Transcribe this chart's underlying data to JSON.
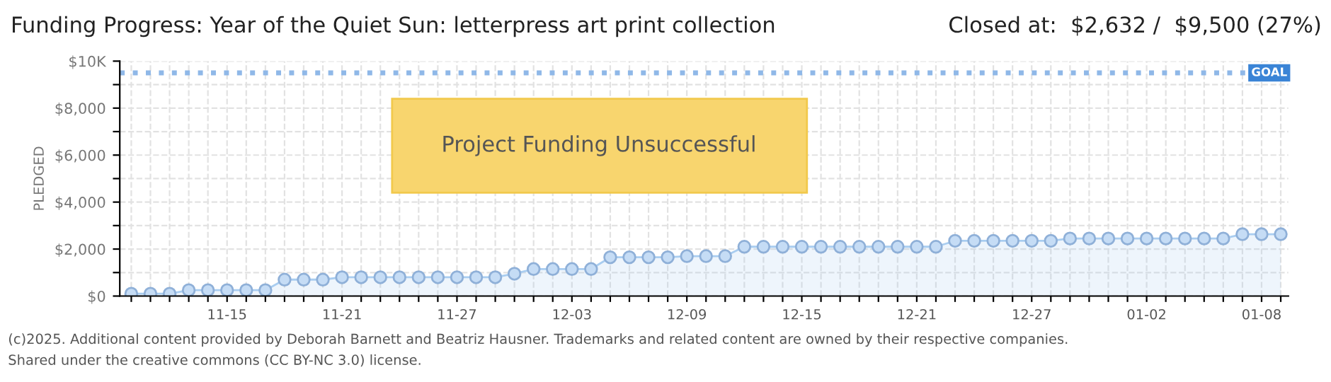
{
  "chart_data": {
    "type": "area",
    "title": "Funding Progress: Year of the Quiet Sun: letterpress art print collection",
    "subtitle": "Closed at:  $2,632 /  $9,500 (27%)",
    "ylabel": "PLEDGED",
    "categories": [
      null,
      null,
      null,
      null,
      null,
      "11-15",
      null,
      null,
      null,
      null,
      null,
      "11-21",
      null,
      null,
      null,
      null,
      null,
      "11-27",
      null,
      null,
      null,
      null,
      null,
      "12-03",
      null,
      null,
      null,
      null,
      null,
      "12-09",
      null,
      null,
      null,
      null,
      null,
      "12-15",
      null,
      null,
      null,
      null,
      null,
      "12-21",
      null,
      null,
      null,
      null,
      null,
      "12-27",
      null,
      null,
      null,
      null,
      null,
      "01-02",
      null,
      null,
      null,
      null,
      null,
      "01-08",
      null
    ],
    "series": [
      {
        "color": "#a9cdf0",
        "values": [
          100,
          100,
          100,
          250,
          250,
          250,
          250,
          250,
          700,
          700,
          700,
          800,
          800,
          800,
          800,
          800,
          800,
          800,
          800,
          800,
          950,
          1150,
          1150,
          1150,
          1150,
          1650,
          1650,
          1650,
          1650,
          1700,
          1700,
          1700,
          2100,
          2100,
          2100,
          2100,
          2100,
          2100,
          2100,
          2100,
          2100,
          2100,
          2100,
          2350,
          2350,
          2350,
          2350,
          2350,
          2350,
          2450,
          2450,
          2450,
          2450,
          2450,
          2450,
          2450,
          2450,
          2450,
          2632,
          2632,
          2632
        ]
      }
    ],
    "ylim": [
      0,
      10000
    ],
    "yticks": [
      {
        "value": 0,
        "label": "$0"
      },
      {
        "value": 1000,
        "label": null
      },
      {
        "value": 2000,
        "label": "$2,000"
      },
      {
        "value": 3000,
        "label": null
      },
      {
        "value": 4000,
        "label": "$4,000"
      },
      {
        "value": 5000,
        "label": null
      },
      {
        "value": 6000,
        "label": "$6,000"
      },
      {
        "value": 7000,
        "label": null
      },
      {
        "value": 8000,
        "label": "$8,000"
      },
      {
        "value": 9000,
        "label": null
      },
      {
        "value": 10000,
        "label": "$10K"
      }
    ],
    "grid": true,
    "marker": "circle",
    "ref_lines": [
      {
        "axis": "y",
        "value": 9500,
        "label": "GOAL",
        "color": "#8fb8e8",
        "line_style": "dotted"
      }
    ],
    "annotations": [
      "Project Funding Unsuccessful",
      "(c)2025. Additional content provided by Deborah Barnett and Beatriz Hausner. Trademarks and related content are owned by their respective companies.",
      "Shared under the creative commons (CC BY-NC 3.0) license."
    ]
  }
}
